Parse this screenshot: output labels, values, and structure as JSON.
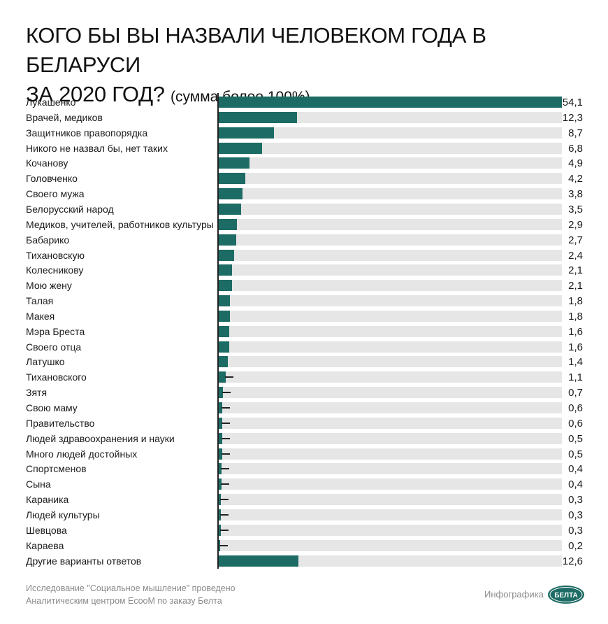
{
  "title": {
    "line1": "КОГО БЫ ВЫ НАЗВАЛИ ЧЕЛОВЕКОМ ГОДА В БЕЛАРУСИ",
    "line2": "ЗА 2020 ГОД?",
    "note": "(сумма более 100%)"
  },
  "chart_data": {
    "type": "bar",
    "orientation": "horizontal",
    "categories": [
      "Лукашенко",
      "Врачей, медиков",
      "Защитников правопорядка",
      "Никого не назвал бы, нет таких",
      "Кочанову",
      "Головченко",
      "Своего мужа",
      "Белорусский народ",
      "Медиков, учителей, работников культуры",
      "Бабарико",
      "Тихановскую",
      "Колесникову",
      "Мою жену",
      "Талая",
      "Макея",
      "Мэра Бреста",
      "Своего отца",
      "Латушко",
      "Тихановского",
      "Зятя",
      "Свою маму",
      "Правительство",
      "Людей здравоохранения и науки",
      "Много людей достойных",
      "Спортсменов",
      "Сына",
      "Караника",
      "Людей культуры",
      "Шевцова",
      "Караева",
      "Другие варианты ответов"
    ],
    "values": [
      54.1,
      12.3,
      8.7,
      6.8,
      4.9,
      4.2,
      3.8,
      3.5,
      2.9,
      2.7,
      2.4,
      2.1,
      2.1,
      1.8,
      1.8,
      1.6,
      1.6,
      1.4,
      1.1,
      0.7,
      0.6,
      0.6,
      0.5,
      0.5,
      0.4,
      0.4,
      0.3,
      0.3,
      0.3,
      0.2,
      12.6
    ],
    "value_labels": [
      "54,1",
      "12,3",
      "8,7",
      "6,8",
      "4,9",
      "4,2",
      "3,8",
      "3,5",
      "2,9",
      "2,7",
      "2,4",
      "2,1",
      "2,1",
      "1,8",
      "1,8",
      "1,6",
      "1,6",
      "1,4",
      "1,1",
      "0,7",
      "0,6",
      "0,6",
      "0,5",
      "0,5",
      "0,4",
      "0,4",
      "0,3",
      "0,3",
      "0,3",
      "0,2",
      "12,6"
    ],
    "xlim": [
      0,
      54.1
    ],
    "grid": false,
    "colors": {
      "bar": "#1c6b64",
      "track": "#e6e6e6",
      "axis": "#222222"
    }
  },
  "footer": {
    "note_line1": "Исследование \"Социальное мышление\" проведено",
    "note_line2": "Аналитическим центром EcooM по заказу Белта",
    "credit": "Инфографика",
    "logo_text": "БЕЛТА"
  }
}
